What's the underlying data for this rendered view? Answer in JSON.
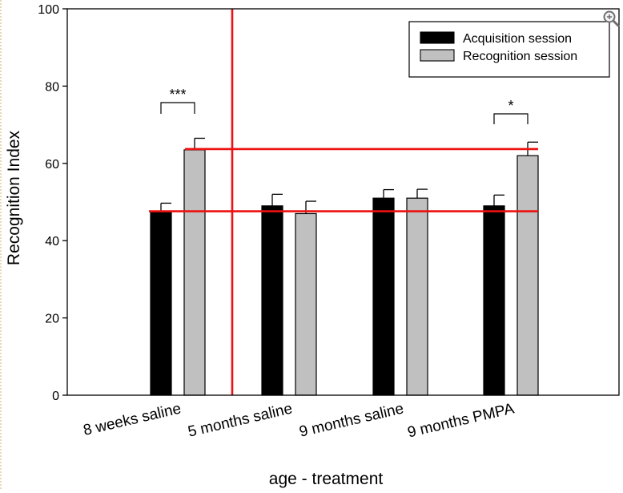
{
  "chart_data": {
    "type": "bar",
    "categories": [
      "8 weeks saline",
      "5 months saline",
      "9 months saline",
      "9 months PMPA"
    ],
    "series": [
      {
        "name": "Acquisition session",
        "color": "#000000",
        "values": [
          47.5,
          49.0,
          51.0,
          49.0
        ],
        "errors": [
          2.2,
          3.0,
          2.2,
          2.8
        ]
      },
      {
        "name": "Recognition session",
        "color": "#c0c0c0",
        "values": [
          63.5,
          47.0,
          51.0,
          62.0
        ],
        "errors": [
          3.0,
          3.2,
          2.3,
          3.5
        ]
      }
    ],
    "xlabel": "age - treatment",
    "ylabel": "Recognition Index",
    "ylim": [
      0,
      100
    ],
    "yticks": [
      0,
      20,
      40,
      60,
      80,
      100
    ],
    "legend_position": "top-right",
    "grid": false,
    "significance": [
      {
        "category": "8 weeks saline",
        "label": "***"
      },
      {
        "category": "9 months PMPA",
        "label": "*"
      }
    ],
    "reference_lines": {
      "color": "#ee1111",
      "horizontal_y": [
        63.7,
        47.6
      ],
      "vertical_after_category": "8 weeks saline"
    }
  },
  "ui": {
    "zoom_icon": "magnify-plus-icon"
  }
}
